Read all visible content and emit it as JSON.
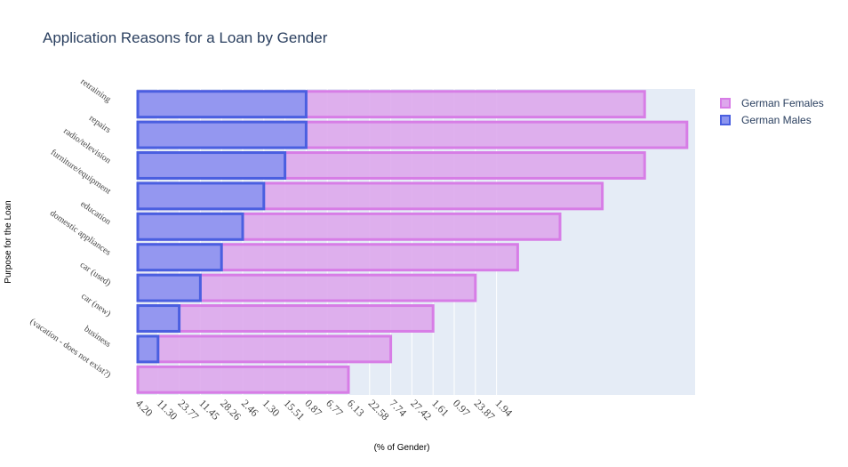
{
  "chart_data": {
    "type": "bar",
    "orientation": "horizontal",
    "barmode": "overlay",
    "title": "Application Reasons for a Loan by Gender",
    "xlabel": "(% of Gender)",
    "ylabel": "Purpose for the Loan",
    "categories": [
      "(vacation - does not exist?)",
      "business",
      "car (new)",
      "car (used)",
      "domestic appliances",
      "education",
      "furniture/equipment",
      "radio/television",
      "repairs",
      "retraining"
    ],
    "x_tick_labels": [
      "4.20",
      "11.30",
      "23.77",
      "11.45",
      "28.26",
      "2.46",
      "1.30",
      "15.51",
      "0.87",
      "6.77",
      "6.13",
      "22.58",
      "7.74",
      "27.42",
      "1.61",
      "0.97",
      "23.87",
      "1.94"
    ],
    "series": [
      {
        "name": "German Females",
        "fill": "#dda8ec",
        "stroke": "#d77de6",
        "values": [
          10,
          12,
          14,
          16,
          18,
          20,
          22,
          24,
          26,
          24
        ]
      },
      {
        "name": "German Males",
        "fill": "#8c95ef",
        "stroke": "#4a5fe0",
        "values": [
          null,
          1,
          2,
          3,
          4,
          5,
          6,
          7,
          8,
          8
        ]
      }
    ],
    "legend_position": "top-right",
    "grid": true
  },
  "legend": [
    {
      "label": "German Females",
      "fill": "#dda8ec",
      "stroke": "#d77de6"
    },
    {
      "label": "German Males",
      "fill": "#8c95ef",
      "stroke": "#4a5fe0"
    }
  ]
}
